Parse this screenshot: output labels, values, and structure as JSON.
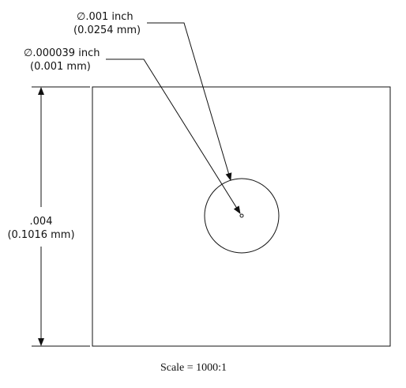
{
  "drawing": {
    "callout_large": {
      "line1": "∅.001 inch",
      "line2": "(0.0254 mm)"
    },
    "callout_small": {
      "line1": "∅.000039 inch",
      "line2": "(0.001 mm)"
    },
    "dimension_height": {
      "line1": ".004",
      "line2": "(0.1016 mm)"
    },
    "scale_label": "Scale = 1000:1"
  },
  "colors": {
    "line": "#111111",
    "background": "#ffffff"
  }
}
